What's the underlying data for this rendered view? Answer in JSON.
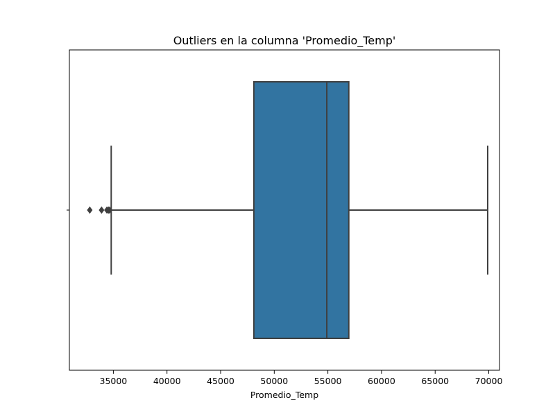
{
  "chart_data": {
    "type": "boxplot",
    "title": "Outliers en la columna 'Promedio_Temp'",
    "xlabel": "Promedio_Temp",
    "ylabel": "",
    "orientation": "horizontal",
    "xlim": [
      30900,
      71000
    ],
    "x_ticks": [
      35000,
      40000,
      45000,
      50000,
      55000,
      60000,
      65000,
      70000
    ],
    "x_tick_labels": [
      "35000",
      "40000",
      "45000",
      "50000",
      "55000",
      "60000",
      "65000",
      "70000"
    ],
    "grid": false,
    "legend": "none",
    "box": {
      "whisker_low": 34800,
      "q1": 48100,
      "median": 54900,
      "q3": 56950,
      "whisker_high": 69900
    },
    "outliers": [
      32800,
      33900,
      34400,
      34550,
      34650
    ],
    "colors": {
      "box_fill": "#3274a1",
      "lines": "#3f3f3f",
      "axes": "#000000"
    }
  }
}
